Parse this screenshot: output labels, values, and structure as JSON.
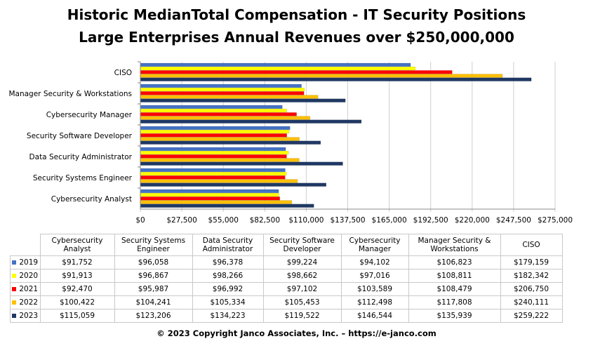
{
  "title_line1": "Historic MedianTotal Compensation - IT Security Positions",
  "title_line2": "Large Enterprises Annual Revenues over $250,000,000",
  "footer": "© 2023 Copyright Janco Associates, Inc. – https://e-janco.com",
  "chart_data": {
    "type": "bar",
    "orientation": "horizontal",
    "categories": [
      "Cybersecurity Analyst",
      "Security Systems Engineer",
      "Data Security Administrator",
      "Security Software Developer",
      "Cybersecurity Manager",
      "Manager Security & Workstations",
      "CISO"
    ],
    "table_headers": [
      "Cybersecurity Analyst",
      "Security Systems Engineer",
      "Data Security Administrator",
      "Security Software Developer",
      "Cybersecurity Manager",
      "Manager Security & Workstations",
      "CISO"
    ],
    "xlim": [
      0,
      275000
    ],
    "x_ticks": [
      "$0",
      "$27,500",
      "$55,000",
      "$82,500",
      "$110,000",
      "$137,500",
      "$165,000",
      "$192,500",
      "$220,000",
      "$247,500",
      "$275,000"
    ],
    "grid": true,
    "legend": "left of data table",
    "series": [
      {
        "name": "2019",
        "color": "#4472c4",
        "values": [
          91752,
          96058,
          96378,
          99224,
          94102,
          106823,
          179159
        ],
        "labels": [
          "$91,752",
          "$96,058",
          "$96,378",
          "$99,224",
          "$94,102",
          "$106,823",
          "$179,159"
        ]
      },
      {
        "name": "2020",
        "color": "#ffff00",
        "values": [
          91913,
          96867,
          98266,
          98662,
          97016,
          108811,
          182342
        ],
        "labels": [
          "$91,913",
          "$96,867",
          "$98,266",
          "$98,662",
          "$97,016",
          "$108,811",
          "$182,342"
        ]
      },
      {
        "name": "2021",
        "color": "#ff0000",
        "values": [
          92470,
          95987,
          96992,
          97102,
          103589,
          108479,
          206750
        ],
        "labels": [
          "$92,470",
          "$95,987",
          "$96,992",
          "$97,102",
          "$103,589",
          "$108,479",
          "$206,750"
        ]
      },
      {
        "name": "2022",
        "color": "#ffc000",
        "values": [
          100422,
          104241,
          105334,
          105453,
          112498,
          117808,
          240111
        ],
        "labels": [
          "$100,422",
          "$104,241",
          "$105,334",
          "$105,453",
          "$112,498",
          "$117,808",
          "$240,111"
        ]
      },
      {
        "name": "2023",
        "color": "#1f3864",
        "values": [
          115059,
          123206,
          134223,
          119522,
          146544,
          135939,
          259222
        ],
        "labels": [
          "$115,059",
          "$123,206",
          "$134,223",
          "$119,522",
          "$146,544",
          "$135,939",
          "$259,222"
        ]
      }
    ]
  }
}
